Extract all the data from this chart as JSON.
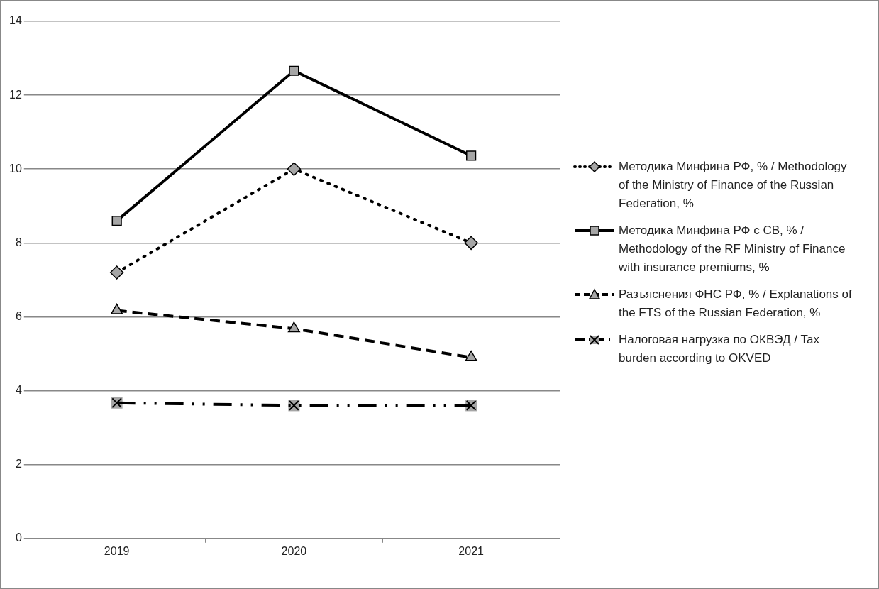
{
  "chart_data": {
    "type": "line",
    "categories": [
      "2019",
      "2020",
      "2021"
    ],
    "series": [
      {
        "name": "Методика Минфина РФ, % / Methodology of the Ministry of Finance of the Russian Federation, %",
        "color": "#000000",
        "values": [
          7.2,
          10.0,
          8.0
        ],
        "marker": "diamond",
        "line_style": "dotted"
      },
      {
        "name": "Методика Минфина  РФ с СВ, % / Methodology of the RF Ministry of Finance with  insurance premiums, %",
        "color": "#000000",
        "values": [
          8.6,
          12.66,
          10.36
        ],
        "marker": "square",
        "line_style": "solid"
      },
      {
        "name": "Разъяснения ФНС РФ, %  / Explanations of the FTS of the Russian Federation, %",
        "color": "#000000",
        "values": [
          6.17,
          5.68,
          4.9
        ],
        "marker": "triangle",
        "line_style": "dashed"
      },
      {
        "name": "Налоговая нагрузка по ОКВЭД / Tax burden according to OKVED",
        "color": "#000000",
        "values": [
          3.67,
          3.6,
          3.6
        ],
        "marker": "cross",
        "line_style": "dashdot"
      }
    ],
    "ylim": [
      0,
      14
    ],
    "yticks": [
      0,
      2,
      4,
      6,
      8,
      10,
      12,
      14
    ],
    "grid": "y",
    "legend": "right"
  }
}
